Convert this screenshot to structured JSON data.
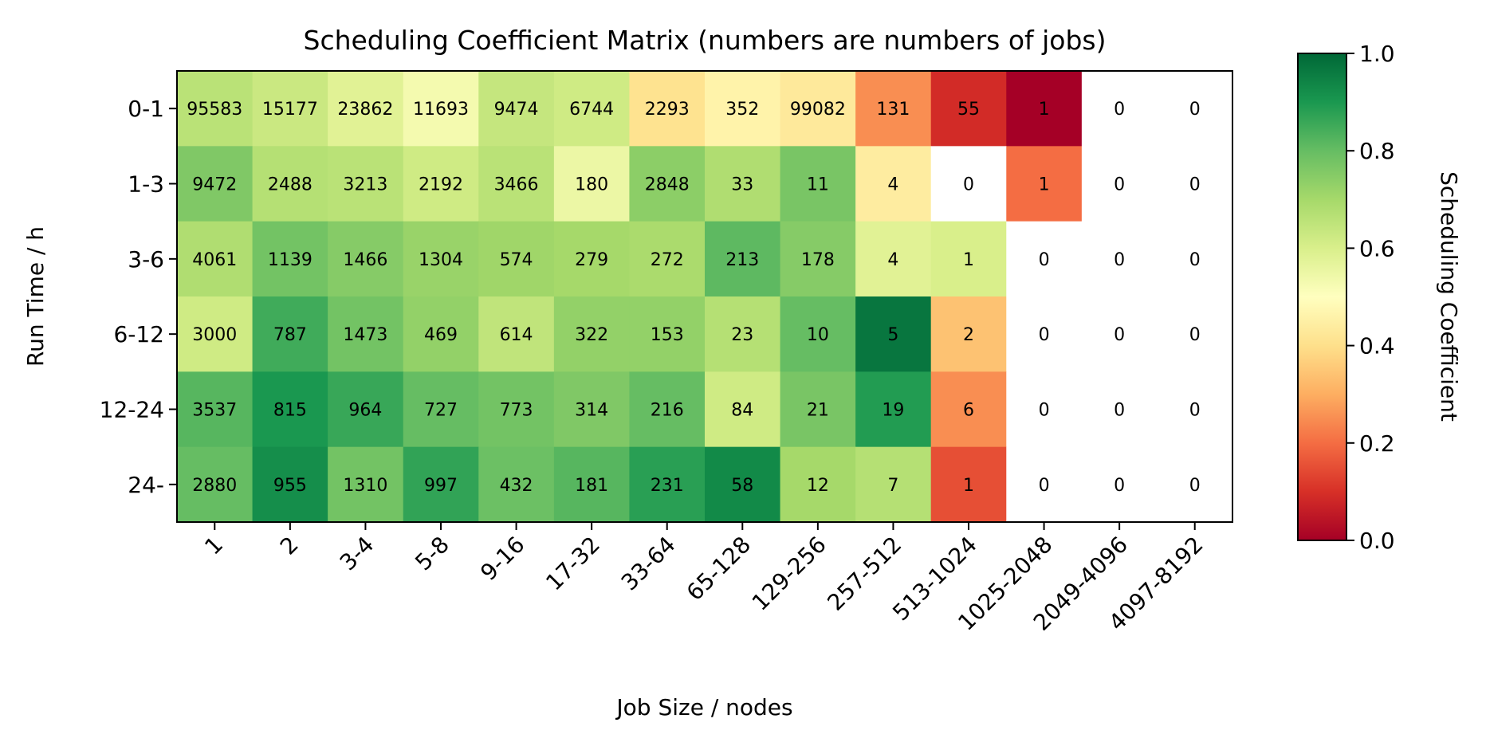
{
  "chart_data": {
    "type": "heatmap",
    "title": "Scheduling Coefficient Matrix (numbers are numbers of jobs)",
    "xlabel": "Job Size / nodes",
    "ylabel": "Run Time / h",
    "x_categories": [
      "1",
      "2",
      "3-4",
      "5-8",
      "9-16",
      "17-32",
      "33-64",
      "65-128",
      "129-256",
      "257-512",
      "513-1024",
      "1025-2048",
      "2049-4096",
      "4097-8192"
    ],
    "y_categories": [
      "0-1",
      "1-3",
      "3-6",
      "6-12",
      "12-24",
      "24-"
    ],
    "counts": [
      [
        "95583",
        "15177",
        "23862",
        "11693",
        "9474",
        "6744",
        "2293",
        "352",
        "99082",
        "131",
        "55",
        "1",
        "0",
        "0"
      ],
      [
        "9472",
        "2488",
        "3213",
        "2192",
        "3466",
        "180",
        "2848",
        "33",
        "11",
        "4",
        "0",
        "1",
        "0",
        "0"
      ],
      [
        "4061",
        "1139",
        "1466",
        "1304",
        "574",
        "279",
        "272",
        "213",
        "178",
        "4",
        "1",
        "0",
        "0",
        "0"
      ],
      [
        "3000",
        "787",
        "1473",
        "469",
        "614",
        "322",
        "153",
        "23",
        "10",
        "5",
        "2",
        "0",
        "0",
        "0"
      ],
      [
        "3537",
        "815",
        "964",
        "727",
        "773",
        "314",
        "216",
        "84",
        "21",
        "19",
        "6",
        "0",
        "0",
        "0"
      ],
      [
        "2880",
        "955",
        "1310",
        "997",
        "432",
        "181",
        "231",
        "58",
        "12",
        "7",
        "1",
        "0",
        "0",
        "0"
      ]
    ],
    "coefficients": [
      [
        0.66,
        0.63,
        0.58,
        0.53,
        0.64,
        0.62,
        0.41,
        0.46,
        0.43,
        0.25,
        0.09,
        0.0,
        null,
        null
      ],
      [
        0.76,
        0.67,
        0.66,
        0.62,
        0.66,
        0.55,
        0.74,
        0.68,
        0.77,
        0.44,
        null,
        0.2,
        null,
        null
      ],
      [
        0.68,
        0.78,
        0.75,
        0.72,
        0.71,
        0.7,
        0.69,
        0.81,
        0.75,
        0.58,
        0.6,
        null,
        null,
        null
      ],
      [
        0.62,
        0.85,
        0.78,
        0.73,
        0.65,
        0.73,
        0.73,
        0.67,
        0.8,
        0.97,
        0.34,
        null,
        null,
        null
      ],
      [
        0.82,
        0.9,
        0.86,
        0.8,
        0.78,
        0.76,
        0.8,
        0.62,
        0.77,
        0.89,
        0.25,
        null,
        null,
        null
      ],
      [
        0.8,
        0.92,
        0.78,
        0.87,
        0.79,
        0.82,
        0.88,
        0.93,
        0.7,
        0.67,
        0.15,
        null,
        null,
        null
      ]
    ],
    "colorbar": {
      "label": "Scheduling Coefficient",
      "range": [
        0.0,
        1.0
      ],
      "ticks": [
        "0.0",
        "0.2",
        "0.4",
        "0.6",
        "0.8",
        "1.0"
      ],
      "colormap": [
        "#a50026",
        "#d73027",
        "#f46d43",
        "#fdae61",
        "#fee08b",
        "#ffffbf",
        "#d9ef8b",
        "#a6d96a",
        "#66bd63",
        "#1a9850",
        "#006837"
      ]
    }
  }
}
